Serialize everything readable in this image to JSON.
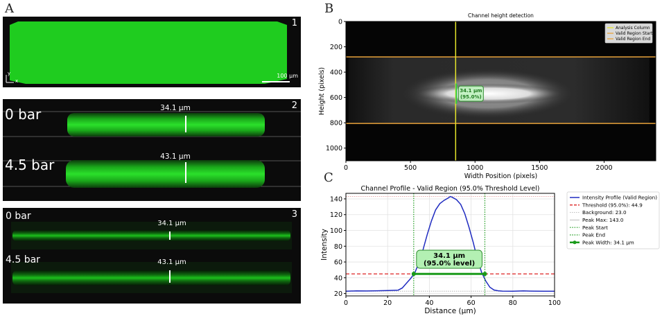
{
  "panel_letters": {
    "a": "A",
    "b": "B",
    "c": "C"
  },
  "panel_a": {
    "sub1": {
      "number": "1",
      "scale_label": "100 μm",
      "axis_y": "y",
      "axis_x": "x"
    },
    "sub2": {
      "number": "2",
      "rows": [
        {
          "pressure": "0 bar",
          "height": "34.1 μm"
        },
        {
          "pressure": "4.5 bar",
          "height": "43.1 μm"
        }
      ]
    },
    "sub3": {
      "number": "3",
      "rows": [
        {
          "pressure": "0 bar",
          "height": "34.1 μm"
        },
        {
          "pressure": "4.5 bar",
          "height": "43.1 μm"
        }
      ]
    }
  },
  "colors": {
    "green": "#22dd22",
    "profile_blue": "#1f2bc0",
    "threshold_red": "#dd2222",
    "peak_green": "#1a9a1a",
    "orange": "#e8a23a",
    "yellow": "#e6e62a"
  },
  "chart_data": [
    {
      "type": "heatmap",
      "title": "Channel height detection",
      "xlabel": "Width Position (pixels)",
      "ylabel": "Height (pixels)",
      "xlim": [
        0,
        2400
      ],
      "ylim": [
        1100,
        0
      ],
      "xticks": [
        0,
        500,
        1000,
        1500,
        2000
      ],
      "yticks": [
        0,
        200,
        400,
        600,
        800,
        1000
      ],
      "analysis_column_x": 850,
      "valid_region_start_y": 280,
      "valid_region_end_y": 805,
      "annotation": [
        "34.1 μm",
        "(95.0%)"
      ],
      "legend": [
        "Analysis Column",
        "Valid Region Start",
        "Valid Region End"
      ]
    },
    {
      "type": "line",
      "title": "Channel Profile - Valid Region (95.0% Threshold Level)",
      "xlabel": "Distance (μm)",
      "ylabel": "Intensity",
      "xlim": [
        0,
        100
      ],
      "ylim": [
        17,
        147
      ],
      "xticks": [
        0,
        20,
        40,
        60,
        80,
        100
      ],
      "yticks": [
        20,
        40,
        60,
        80,
        100,
        120,
        140
      ],
      "series": [
        {
          "name": "Intensity Profile (Valid Region)",
          "x": [
            0,
            5,
            10,
            15,
            20,
            25,
            27,
            29,
            31,
            33,
            35,
            37,
            39,
            41,
            43,
            45,
            47,
            49,
            50,
            51,
            53,
            55,
            57,
            59,
            61,
            63,
            65,
            67,
            69,
            71,
            73,
            75,
            80,
            85,
            90,
            95,
            100
          ],
          "values": [
            23,
            23.3,
            23.2,
            23.5,
            23.8,
            24.3,
            27,
            33,
            39,
            46,
            59,
            76,
            95,
            112,
            126,
            134,
            138,
            141,
            143,
            142,
            139,
            133,
            121,
            104,
            85,
            64,
            47,
            36,
            28,
            24.5,
            23.5,
            23.1,
            23,
            23.3,
            23.1,
            23,
            23
          ]
        }
      ],
      "threshold": 44.9,
      "background": 23.0,
      "peak_max": 143.0,
      "peak_start": 32.5,
      "peak_end": 66.6,
      "peak_width_label": [
        "34.1 μm",
        "(95.0% level)"
      ],
      "legend": [
        "Intensity Profile (Valid Region)",
        "Threshold (95.0%): 44.9",
        "Background: 23.0",
        "Peak Max: 143.0",
        "Peak Start",
        "Peak End",
        "Peak Width: 34.1 μm"
      ]
    }
  ]
}
